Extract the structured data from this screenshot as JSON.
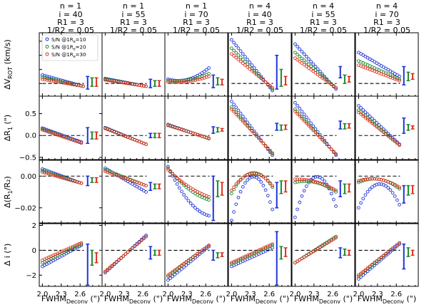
{
  "figure": {
    "x_axis_label": "FWHM",
    "x_axis_sub": "Deconv",
    "x_axis_unit": " (\")",
    "x_tick_labels": [
      "2.0",
      "2.3",
      "2.6"
    ],
    "x_ticks": [
      2.0,
      2.3,
      2.6
    ],
    "xlim": [
      1.95,
      2.95
    ],
    "errbar_x": [
      2.72,
      2.79,
      2.86
    ],
    "legend": {
      "prefix": "S/N @1R",
      "sub": "e",
      "entries": [
        "=10",
        "=20",
        "=30"
      ],
      "colors": [
        "#1f33d6",
        "#1f8a2c",
        "#e0301e"
      ],
      "placement": "top-left"
    },
    "columns": [
      {
        "n": "n = 1",
        "i": "i = 40",
        "R1": "R1 = 3",
        "R2": "1/R2 = 0.05"
      },
      {
        "n": "n = 1",
        "i": "i = 55",
        "R1": "R1 = 3",
        "R2": "1/R2 = 0.05"
      },
      {
        "n": "n = 1",
        "i": "i = 70",
        "R1": "R1 = 3",
        "R2": "1/R2 = 0.05"
      },
      {
        "n": "n = 4",
        "i": "i = 40",
        "R1": "R1 = 3",
        "R2": "1/R2 = 0.05"
      },
      {
        "n": "n = 4",
        "i": "i = 55",
        "R1": "R1 = 3",
        "R2": "1/R2 = 0.05"
      },
      {
        "n": "n = 4",
        "i": "i = 70",
        "R1": "R1 = 3",
        "R2": "1/R2 = 0.05"
      }
    ],
    "rows": [
      {
        "ylabel": "ΔV",
        "ylabel_sub": "ROT",
        "ylabel_unit": " (km/s)"
      },
      {
        "ylabel": "ΔR",
        "ylabel_sub": "1",
        "ylabel_unit": " (\")"
      },
      {
        "ylabel": "Δ(R",
        "ylabel_sub": "1",
        "ylabel_unit": "/R₂)"
      },
      {
        "ylabel": "Δ i",
        "ylabel_sub": "",
        "ylabel_unit": " (°)"
      }
    ]
  },
  "chart_data": [
    {
      "type": "scatter",
      "row": 0,
      "col": 0,
      "ylim": [
        -9,
        36
      ],
      "yticks": [],
      "reference_line": 0,
      "x": [
        2.0,
        2.65
      ],
      "series": [
        {
          "y": [
            6,
            -2
          ],
          "curve": 0
        },
        {
          "y": [
            4.5,
            -2
          ],
          "curve": 0
        },
        {
          "y": [
            3,
            -2
          ],
          "curve": 0
        }
      ],
      "errbars": [
        [
          -4,
          5
        ],
        [
          -2,
          4
        ],
        [
          -2,
          4
        ]
      ]
    },
    {
      "type": "scatter",
      "row": 0,
      "col": 1,
      "ylim": [
        -9,
        36
      ],
      "yticks": [],
      "reference_line": 0,
      "x": [
        2.0,
        2.65
      ],
      "series": [
        {
          "y": [
            3.5,
            -2
          ],
          "curve": 0
        },
        {
          "y": [
            3,
            -2
          ],
          "curve": 0
        },
        {
          "y": [
            2.5,
            -2
          ],
          "curve": 0
        }
      ],
      "errbars": [
        [
          -3,
          3
        ],
        [
          -2,
          2
        ],
        [
          -2,
          2
        ]
      ]
    },
    {
      "type": "scatter",
      "row": 0,
      "col": 2,
      "ylim": [
        -9,
        36
      ],
      "yticks": [],
      "reference_line": 0,
      "x": [
        2.0,
        2.65
      ],
      "series": [
        {
          "y": [
            3,
            11
          ],
          "curve": -4
        },
        {
          "y": [
            2,
            7
          ],
          "curve": -2
        },
        {
          "y": [
            1,
            5
          ],
          "curve": -1.5
        }
      ],
      "errbars": [
        [
          -3,
          6
        ],
        [
          -1,
          4
        ],
        [
          -1,
          3
        ]
      ]
    },
    {
      "type": "scatter",
      "row": 0,
      "col": 3,
      "ylim": [
        -9,
        36
      ],
      "yticks": [],
      "reference_line": 0,
      "x": [
        2.0,
        2.65
      ],
      "series": [
        {
          "y": [
            31,
            -5
          ],
          "curve": 0
        },
        {
          "y": [
            25,
            -4
          ],
          "curve": 0
        },
        {
          "y": [
            21,
            -3
          ],
          "curve": 0
        }
      ],
      "errbars": [
        [
          -4,
          20
        ],
        [
          -2,
          10
        ],
        [
          -1,
          5
        ]
      ]
    },
    {
      "type": "scatter",
      "row": 0,
      "col": 4,
      "ylim": [
        -9,
        36
      ],
      "yticks": [],
      "reference_line": 0,
      "x": [
        2.0,
        2.65
      ],
      "series": [
        {
          "y": [
            28,
            -4
          ],
          "curve": 0
        },
        {
          "y": [
            22,
            -3
          ],
          "curve": 0
        },
        {
          "y": [
            18,
            -3
          ],
          "curve": 0
        }
      ],
      "errbars": [
        [
          4,
          12
        ],
        [
          0,
          6
        ],
        [
          1,
          5
        ]
      ]
    },
    {
      "type": "scatter",
      "row": 0,
      "col": 5,
      "ylim": [
        -9,
        36
      ],
      "yticks": [],
      "reference_line": 0,
      "x": [
        2.0,
        2.65
      ],
      "series": [
        {
          "y": [
            22,
            5
          ],
          "curve": 0
        },
        {
          "y": [
            16,
            3
          ],
          "curve": 0
        },
        {
          "y": [
            13,
            2
          ],
          "curve": 0
        }
      ],
      "errbars": [
        [
          -1,
          12
        ],
        [
          2,
          8
        ],
        [
          3,
          7
        ]
      ]
    },
    {
      "type": "scatter",
      "row": 1,
      "col": 0,
      "ylim": [
        -0.55,
        0.9
      ],
      "yticks": [
        -0.5,
        0.0,
        0.5
      ],
      "reference_line": 0,
      "x": [
        2.0,
        2.62
      ],
      "series": [
        {
          "y": [
            0.17,
            -0.15
          ],
          "curve": 0
        },
        {
          "y": [
            0.15,
            -0.17
          ],
          "curve": 0
        },
        {
          "y": [
            0.13,
            -0.17
          ],
          "curve": 0
        }
      ],
      "errbars": [
        [
          -0.18,
          0.18
        ],
        [
          -0.08,
          0.08
        ],
        [
          -0.08,
          0.08
        ]
      ]
    },
    {
      "type": "scatter",
      "row": 1,
      "col": 1,
      "ylim": [
        -0.55,
        0.9
      ],
      "yticks": [],
      "reference_line": 0,
      "x": [
        2.0,
        2.65
      ],
      "series": [
        {
          "y": [
            0.18,
            -0.2
          ],
          "curve": 0
        },
        {
          "y": [
            0.17,
            -0.2
          ],
          "curve": 0
        },
        {
          "y": [
            0.16,
            -0.2
          ],
          "curve": 0
        }
      ],
      "errbars": [
        [
          -0.05,
          0.05
        ],
        [
          -0.05,
          0.05
        ],
        [
          -0.05,
          0.05
        ]
      ]
    },
    {
      "type": "scatter",
      "row": 1,
      "col": 2,
      "ylim": [
        -0.55,
        0.9
      ],
      "yticks": [],
      "reference_line": 0,
      "x": [
        2.0,
        2.65
      ],
      "series": [
        {
          "y": [
            0.25,
            -0.07
          ],
          "curve": 0
        },
        {
          "y": [
            0.24,
            -0.07
          ],
          "curve": 0
        },
        {
          "y": [
            0.23,
            -0.06
          ],
          "curve": 0
        }
      ],
      "errbars": [
        [
          0.05,
          0.2
        ],
        [
          0.08,
          0.18
        ],
        [
          0.1,
          0.16
        ]
      ]
    },
    {
      "type": "scatter",
      "row": 1,
      "col": 3,
      "ylim": [
        -0.55,
        0.9
      ],
      "yticks": [],
      "reference_line": 0,
      "x": [
        2.0,
        2.65
      ],
      "series": [
        {
          "y": [
            0.78,
            -0.45
          ],
          "curve": 0
        },
        {
          "y": [
            0.65,
            -0.42
          ],
          "curve": 0
        },
        {
          "y": [
            0.6,
            -0.4
          ],
          "curve": 0
        }
      ],
      "errbars": [
        [
          0.12,
          0.28
        ],
        [
          0.12,
          0.24
        ],
        [
          0.14,
          0.24
        ]
      ]
    },
    {
      "type": "scatter",
      "row": 1,
      "col": 4,
      "ylim": [
        -0.55,
        0.9
      ],
      "yticks": [],
      "reference_line": 0,
      "x": [
        2.0,
        2.65
      ],
      "series": [
        {
          "y": [
            0.75,
            -0.45
          ],
          "curve": 0
        },
        {
          "y": [
            0.6,
            -0.43
          ],
          "curve": 0
        },
        {
          "y": [
            0.55,
            -0.42
          ],
          "curve": 0
        }
      ],
      "errbars": [
        [
          0.15,
          0.33
        ],
        [
          0.15,
          0.27
        ],
        [
          0.17,
          0.27
        ]
      ]
    },
    {
      "type": "scatter",
      "row": 1,
      "col": 5,
      "ylim": [
        -0.55,
        0.9
      ],
      "yticks": [],
      "reference_line": 0,
      "x": [
        2.0,
        2.65
      ],
      "series": [
        {
          "y": [
            0.68,
            -0.2
          ],
          "curve": 0
        },
        {
          "y": [
            0.58,
            -0.22
          ],
          "curve": 0
        },
        {
          "y": [
            0.53,
            -0.22
          ],
          "curve": 0
        }
      ],
      "errbars": [
        [
          0.05,
          0.4
        ],
        [
          0.12,
          0.25
        ],
        [
          0.15,
          0.22
        ]
      ]
    },
    {
      "type": "scatter",
      "row": 2,
      "col": 0,
      "ylim": [
        -0.03,
        0.01
      ],
      "yticks": [
        -0.02,
        0.0
      ],
      "reference_line": 0,
      "x": [
        2.0,
        2.62
      ],
      "series": [
        {
          "y": [
            0.0045,
            -0.0045
          ],
          "curve": 0
        },
        {
          "y": [
            0.0035,
            -0.0045
          ],
          "curve": 0
        },
        {
          "y": [
            0.0025,
            -0.0045
          ],
          "curve": 0
        }
      ],
      "errbars": [
        [
          -0.006,
          0.0
        ],
        [
          -0.004,
          -0.001
        ],
        [
          -0.004,
          -0.001
        ]
      ]
    },
    {
      "type": "scatter",
      "row": 2,
      "col": 1,
      "ylim": [
        -0.03,
        0.01
      ],
      "yticks": [],
      "reference_line": 0,
      "x": [
        2.0,
        2.65
      ],
      "series": [
        {
          "y": [
            0.005,
            -0.01
          ],
          "curve": 0
        },
        {
          "y": [
            0.004,
            -0.006
          ],
          "curve": 0
        },
        {
          "y": [
            0.003,
            -0.006
          ],
          "curve": 0
        }
      ],
      "errbars": [
        [
          -0.009,
          -0.004
        ],
        [
          -0.008,
          -0.005
        ],
        [
          -0.008,
          -0.005
        ]
      ]
    },
    {
      "type": "scatter",
      "row": 2,
      "col": 2,
      "ylim": [
        -0.03,
        0.01
      ],
      "yticks": [],
      "reference_line": 0,
      "x": [
        2.0,
        2.65
      ],
      "series": [
        {
          "y": [
            0.006,
            -0.025
          ],
          "curve": -0.006
        },
        {
          "y": [
            0.005,
            -0.015
          ],
          "curve": -0.003
        },
        {
          "y": [
            0.004,
            -0.013
          ],
          "curve": -0.002
        }
      ],
      "errbars": [
        [
          -0.028,
          0.0
        ],
        [
          -0.013,
          -0.003
        ],
        [
          -0.012,
          -0.004
        ]
      ]
    },
    {
      "type": "scatter",
      "row": 2,
      "col": 3,
      "ylim": [
        -0.03,
        0.01
      ],
      "yticks": [],
      "reference_line": 0,
      "x": [
        2.0,
        2.65
      ],
      "series": [
        {
          "y": [
            -0.028,
            -0.021
          ],
          "curve": 0.024
        },
        {
          "y": [
            -0.011,
            -0.007
          ],
          "curve": 0.011
        },
        {
          "y": [
            -0.009,
            -0.006
          ],
          "curve": 0.009
        }
      ],
      "errbars": [
        [
          -0.02,
          -0.004
        ],
        [
          -0.011,
          -0.003
        ],
        [
          -0.01,
          -0.003
        ]
      ]
    },
    {
      "type": "scatter",
      "row": 2,
      "col": 4,
      "ylim": [
        -0.03,
        0.01
      ],
      "yticks": [],
      "reference_line": 0,
      "x": [
        2.0,
        2.65
      ],
      "series": [
        {
          "y": [
            -0.026,
            -0.019
          ],
          "curve": 0.022
        },
        {
          "y": [
            -0.004,
            -0.01
          ],
          "curve": 0.003
        },
        {
          "y": [
            -0.002,
            -0.009
          ],
          "curve": 0.002
        }
      ],
      "errbars": [
        [
          -0.013,
          -0.003
        ],
        [
          -0.011,
          -0.005
        ],
        [
          -0.01,
          -0.005
        ]
      ]
    },
    {
      "type": "scatter",
      "row": 2,
      "col": 5,
      "ylim": [
        -0.03,
        0.01
      ],
      "yticks": [],
      "reference_line": 0,
      "x": [
        2.0,
        2.65
      ],
      "series": [
        {
          "y": [
            -0.02,
            -0.018
          ],
          "curve": 0.014
        },
        {
          "y": [
            -0.004,
            -0.008
          ],
          "curve": 0.004
        },
        {
          "y": [
            -0.003,
            -0.007
          ],
          "curve": 0.003
        }
      ],
      "errbars": [
        [
          -0.017,
          -0.006
        ],
        [
          -0.012,
          -0.006
        ],
        [
          -0.011,
          -0.006
        ]
      ]
    },
    {
      "type": "scatter",
      "row": 3,
      "col": 0,
      "ylim": [
        -2.9,
        2.2
      ],
      "yticks": [
        -2,
        0,
        2
      ],
      "reference_line": 0,
      "x": [
        2.0,
        2.62
      ],
      "series": [
        {
          "y": [
            -1.3,
            0.4
          ],
          "curve": 0
        },
        {
          "y": [
            -1.0,
            0.5
          ],
          "curve": 0
        },
        {
          "y": [
            -0.8,
            0.6
          ],
          "curve": 0
        }
      ],
      "errbars": [
        [
          -2.8,
          0.5
        ],
        [
          -1.2,
          0.0
        ],
        [
          -1.0,
          -0.2
        ]
      ]
    },
    {
      "type": "scatter",
      "row": 3,
      "col": 1,
      "ylim": [
        -2.9,
        2.2
      ],
      "yticks": [],
      "reference_line": 0,
      "x": [
        2.0,
        2.65
      ],
      "series": [
        {
          "y": [
            -1.8,
            1.2
          ],
          "curve": 0
        },
        {
          "y": [
            -1.7,
            1.1
          ],
          "curve": 0
        },
        {
          "y": [
            -1.7,
            1.1
          ],
          "curve": 0
        }
      ],
      "errbars": [
        [
          -0.7,
          0.3
        ],
        [
          -0.4,
          0.0
        ],
        [
          -0.4,
          0.0
        ]
      ]
    },
    {
      "type": "scatter",
      "row": 3,
      "col": 2,
      "ylim": [
        -2.9,
        2.2
      ],
      "yticks": [],
      "reference_line": 0,
      "x": [
        2.0,
        2.65
      ],
      "series": [
        {
          "y": [
            -2.4,
            0.3
          ],
          "curve": 0
        },
        {
          "y": [
            -2.1,
            0.4
          ],
          "curve": 0
        },
        {
          "y": [
            -2.0,
            0.4
          ],
          "curve": 0
        }
      ],
      "errbars": [
        [
          -0.8,
          0.0
        ],
        [
          -0.6,
          -0.2
        ],
        [
          -0.5,
          -0.2
        ]
      ]
    },
    {
      "type": "scatter",
      "row": 3,
      "col": 3,
      "ylim": [
        -2.9,
        2.2
      ],
      "yticks": [],
      "reference_line": 0,
      "x": [
        2.0,
        2.65
      ],
      "series": [
        {
          "y": [
            -1.3,
            0.2
          ],
          "curve": 0
        },
        {
          "y": [
            -1.1,
            0.4
          ],
          "curve": 0
        },
        {
          "y": [
            -1.0,
            0.5
          ],
          "curve": 0
        }
      ],
      "errbars": [
        [
          -2.8,
          1.5
        ],
        [
          -0.7,
          0.3
        ],
        [
          -0.5,
          0.2
        ]
      ]
    },
    {
      "type": "scatter",
      "row": 3,
      "col": 4,
      "ylim": [
        -2.9,
        2.2
      ],
      "yticks": [],
      "reference_line": 0,
      "x": [
        2.0,
        2.65
      ],
      "series": [
        {
          "y": [
            -1.0,
            1.1
          ],
          "curve": 0
        },
        {
          "y": [
            -1.0,
            1.1
          ],
          "curve": 0
        },
        {
          "y": [
            -1.0,
            1.0
          ],
          "curve": 0
        }
      ],
      "errbars": [
        [
          -0.6,
          0.2
        ],
        [
          -0.4,
          0.1
        ],
        [
          -0.4,
          0.0
        ]
      ]
    },
    {
      "type": "scatter",
      "row": 3,
      "col": 5,
      "ylim": [
        -2.9,
        2.2
      ],
      "yticks": [],
      "reference_line": 0,
      "x": [
        2.0,
        2.65
      ],
      "series": [
        {
          "y": [
            -2.3,
            0.5
          ],
          "curve": 0
        },
        {
          "y": [
            -2.1,
            0.6
          ],
          "curve": 0
        },
        {
          "y": [
            -2.0,
            0.6
          ],
          "curve": 0
        }
      ],
      "errbars": [
        [
          -1.5,
          0.5
        ],
        [
          -0.5,
          0.2
        ],
        [
          -0.4,
          0.0
        ]
      ]
    }
  ]
}
